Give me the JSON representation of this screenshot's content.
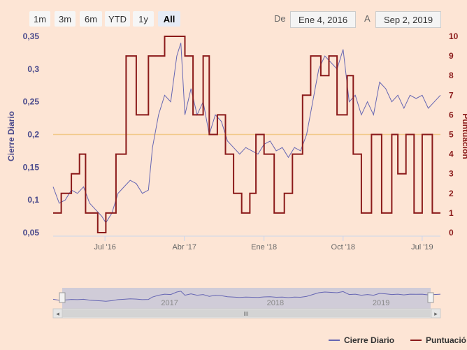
{
  "range_selector": {
    "buttons": [
      "1m",
      "3m",
      "6m",
      "YTD",
      "1y",
      "All"
    ],
    "active": "All",
    "from_label": "De",
    "from_value": "Ene 4, 2016",
    "to_label": "A",
    "to_value": "Sep 2, 2019"
  },
  "colors": {
    "background": "#fde5d5",
    "close_series": "#6666b3",
    "score_series": "#8b1a1a",
    "threshold_line": "#f2c98a",
    "left_axis_text": "#4a4a8c",
    "right_axis_text": "#8b1a1a"
  },
  "chart_data": {
    "type": "line",
    "title": "",
    "xlabel": "",
    "x_range": [
      "2016-01-04",
      "2019-09-02"
    ],
    "x_ticks": [
      "Jul '16",
      "Abr '17",
      "Ene '18",
      "Oct '18",
      "Jul '19"
    ],
    "y_left": {
      "label": "Cierre Diario",
      "ticks": [
        "0,05",
        "0,1",
        "0,15",
        "0,2",
        "0,25",
        "0,3",
        "0,35"
      ],
      "range": [
        0.05,
        0.35
      ]
    },
    "y_right": {
      "label": "Puntuación",
      "ticks": [
        "0",
        "1",
        "2",
        "3",
        "4",
        "5",
        "6",
        "7",
        "8",
        "9",
        "10"
      ],
      "range": [
        0,
        10
      ]
    },
    "reference_line": {
      "axis": "left",
      "value": 0.2
    },
    "series": [
      {
        "name": "Cierre Diario",
        "axis": "left",
        "style": "line",
        "points": [
          [
            "2016-01-04",
            0.12
          ],
          [
            "2016-01-25",
            0.095
          ],
          [
            "2016-02-15",
            0.1
          ],
          [
            "2016-03-07",
            0.115
          ],
          [
            "2016-03-28",
            0.11
          ],
          [
            "2016-04-18",
            0.12
          ],
          [
            "2016-05-09",
            0.095
          ],
          [
            "2016-05-30",
            0.085
          ],
          [
            "2016-06-20",
            0.075
          ],
          [
            "2016-07-04",
            0.065
          ],
          [
            "2016-07-25",
            0.08
          ],
          [
            "2016-08-15",
            0.11
          ],
          [
            "2016-09-05",
            0.12
          ],
          [
            "2016-09-26",
            0.13
          ],
          [
            "2016-10-17",
            0.125
          ],
          [
            "2016-11-07",
            0.11
          ],
          [
            "2016-11-28",
            0.115
          ],
          [
            "2016-12-12",
            0.18
          ],
          [
            "2017-01-02",
            0.23
          ],
          [
            "2017-01-23",
            0.26
          ],
          [
            "2017-02-13",
            0.25
          ],
          [
            "2017-03-06",
            0.32
          ],
          [
            "2017-03-20",
            0.34
          ],
          [
            "2017-04-03",
            0.23
          ],
          [
            "2017-04-24",
            0.27
          ],
          [
            "2017-05-15",
            0.23
          ],
          [
            "2017-06-05",
            0.25
          ],
          [
            "2017-06-26",
            0.2
          ],
          [
            "2017-07-17",
            0.23
          ],
          [
            "2017-08-07",
            0.22
          ],
          [
            "2017-08-28",
            0.19
          ],
          [
            "2017-09-18",
            0.18
          ],
          [
            "2017-10-09",
            0.17
          ],
          [
            "2017-10-30",
            0.18
          ],
          [
            "2017-11-20",
            0.175
          ],
          [
            "2017-12-11",
            0.17
          ],
          [
            "2018-01-01",
            0.185
          ],
          [
            "2018-01-22",
            0.19
          ],
          [
            "2018-02-12",
            0.175
          ],
          [
            "2018-03-05",
            0.18
          ],
          [
            "2018-03-26",
            0.165
          ],
          [
            "2018-04-16",
            0.18
          ],
          [
            "2018-05-07",
            0.175
          ],
          [
            "2018-05-28",
            0.2
          ],
          [
            "2018-06-18",
            0.25
          ],
          [
            "2018-07-09",
            0.3
          ],
          [
            "2018-07-30",
            0.32
          ],
          [
            "2018-08-20",
            0.31
          ],
          [
            "2018-09-10",
            0.3
          ],
          [
            "2018-10-01",
            0.33
          ],
          [
            "2018-10-22",
            0.25
          ],
          [
            "2018-11-12",
            0.26
          ],
          [
            "2018-12-03",
            0.23
          ],
          [
            "2018-12-24",
            0.25
          ],
          [
            "2019-01-14",
            0.23
          ],
          [
            "2019-02-04",
            0.28
          ],
          [
            "2019-02-25",
            0.27
          ],
          [
            "2019-03-18",
            0.25
          ],
          [
            "2019-04-08",
            0.26
          ],
          [
            "2019-04-29",
            0.24
          ],
          [
            "2019-05-20",
            0.26
          ],
          [
            "2019-06-10",
            0.255
          ],
          [
            "2019-07-01",
            0.26
          ],
          [
            "2019-07-22",
            0.24
          ],
          [
            "2019-08-12",
            0.25
          ],
          [
            "2019-09-02",
            0.26
          ]
        ]
      },
      {
        "name": "Puntuación",
        "axis": "right",
        "style": "step",
        "points": [
          [
            "2016-01-04",
            1
          ],
          [
            "2016-02-01",
            2
          ],
          [
            "2016-03-07",
            3
          ],
          [
            "2016-04-04",
            4
          ],
          [
            "2016-04-25",
            1
          ],
          [
            "2016-06-06",
            0
          ],
          [
            "2016-07-04",
            1
          ],
          [
            "2016-08-08",
            4
          ],
          [
            "2016-09-12",
            9
          ],
          [
            "2016-10-17",
            6
          ],
          [
            "2016-11-28",
            9
          ],
          [
            "2016-12-26",
            9
          ],
          [
            "2017-01-23",
            10
          ],
          [
            "2017-04-03",
            9
          ],
          [
            "2017-05-01",
            6
          ],
          [
            "2017-06-05",
            9
          ],
          [
            "2017-06-26",
            5
          ],
          [
            "2017-07-24",
            6
          ],
          [
            "2017-08-21",
            4
          ],
          [
            "2017-09-18",
            2
          ],
          [
            "2017-10-16",
            1
          ],
          [
            "2017-11-13",
            2
          ],
          [
            "2017-12-04",
            5
          ],
          [
            "2018-01-01",
            4
          ],
          [
            "2018-02-05",
            1
          ],
          [
            "2018-03-12",
            2
          ],
          [
            "2018-04-09",
            4
          ],
          [
            "2018-05-14",
            7
          ],
          [
            "2018-06-11",
            9
          ],
          [
            "2018-07-16",
            8
          ],
          [
            "2018-08-13",
            9
          ],
          [
            "2018-09-10",
            6
          ],
          [
            "2018-10-15",
            8
          ],
          [
            "2018-11-05",
            4
          ],
          [
            "2018-12-03",
            1
          ],
          [
            "2019-01-07",
            5
          ],
          [
            "2019-02-11",
            1
          ],
          [
            "2019-03-18",
            5
          ],
          [
            "2019-04-08",
            3
          ],
          [
            "2019-05-06",
            5
          ],
          [
            "2019-06-03",
            1
          ],
          [
            "2019-07-01",
            5
          ],
          [
            "2019-08-05",
            1
          ],
          [
            "2019-09-02",
            1
          ]
        ]
      }
    ]
  },
  "navigator": {
    "year_labels": [
      "2017",
      "2018",
      "2019"
    ],
    "scrollbar_center_glyph": "III",
    "left_arrow": "◂",
    "right_arrow": "▸"
  },
  "legend": {
    "items": [
      "Cierre Diario",
      "Puntuació"
    ]
  }
}
